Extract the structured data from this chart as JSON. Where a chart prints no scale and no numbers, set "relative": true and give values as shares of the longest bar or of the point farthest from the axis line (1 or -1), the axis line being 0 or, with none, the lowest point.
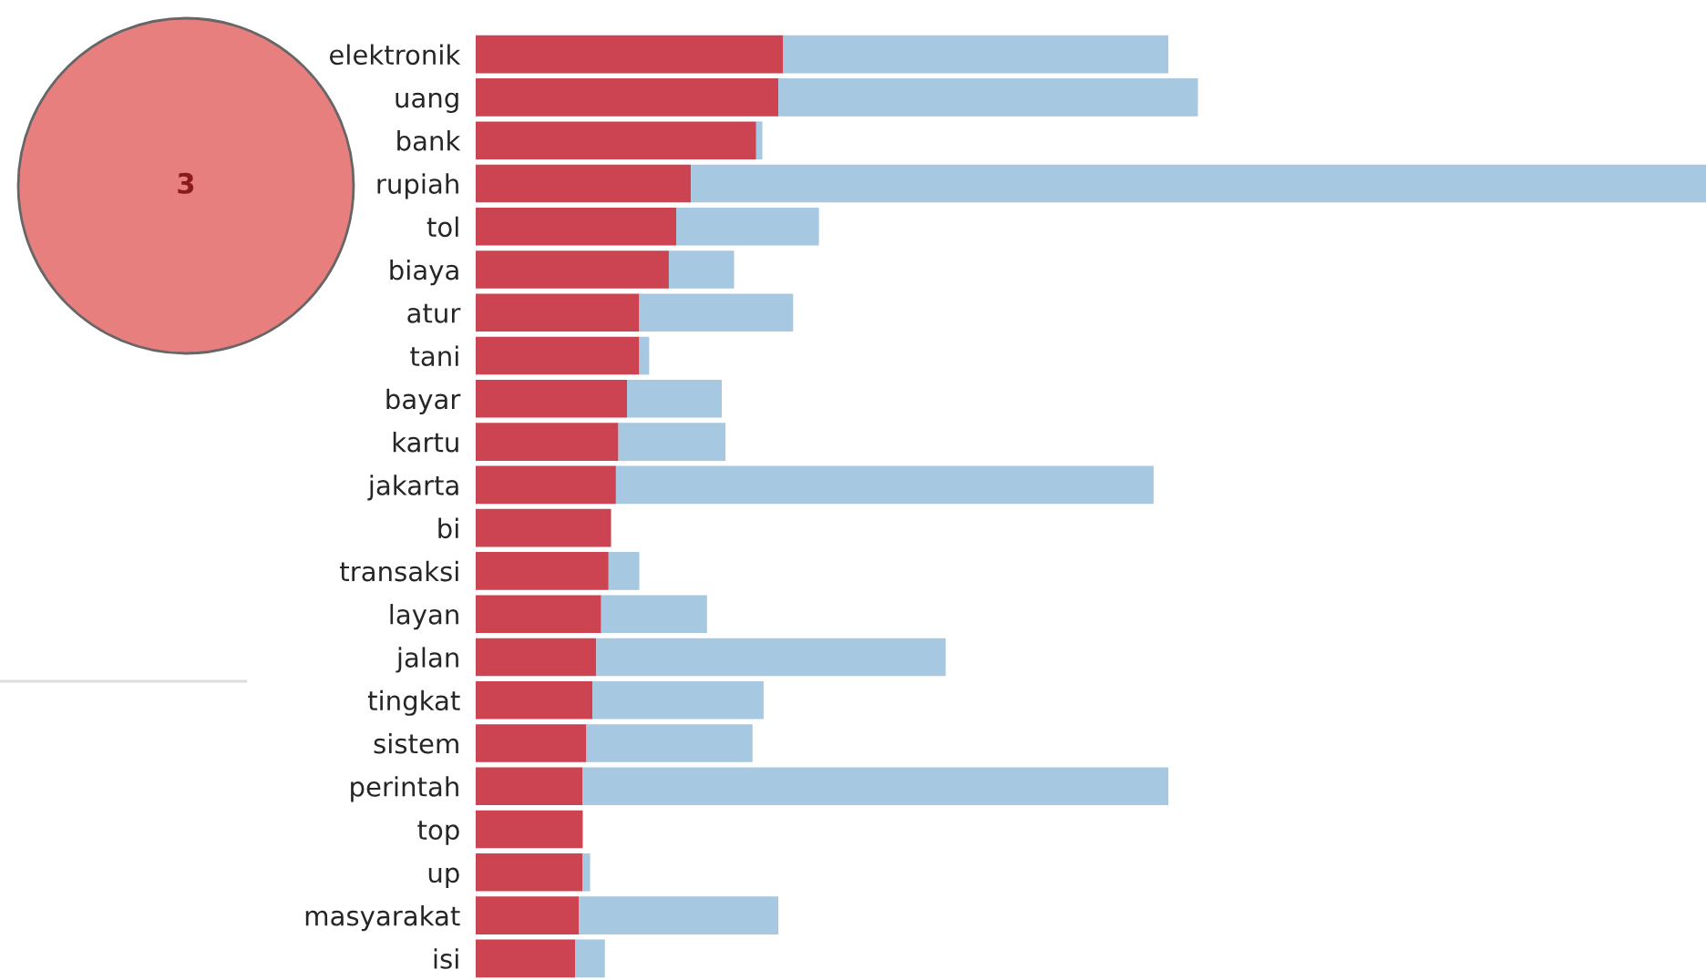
{
  "chart_data": {
    "type": "bar",
    "orientation": "horizontal",
    "relative": true,
    "stacked": true,
    "categories": [
      "elektronik",
      "uang",
      "bank",
      "rupiah",
      "tol",
      "biaya",
      "atur",
      "tani",
      "bayar",
      "kartu",
      "jakarta",
      "bi",
      "transaksi",
      "layan",
      "jalan",
      "tingkat",
      "sistem",
      "perintah",
      "top",
      "up",
      "masyarakat",
      "isi"
    ],
    "series": [
      {
        "color": "#cc4451",
        "values": [
          0.25,
          0.246,
          0.228,
          0.175,
          0.163,
          0.157,
          0.133,
          0.133,
          0.123,
          0.116,
          0.114,
          0.11,
          0.108,
          0.102,
          0.098,
          0.095,
          0.09,
          0.087,
          0.087,
          0.087,
          0.084,
          0.081
        ]
      },
      {
        "color": "#a6c8e0",
        "values": [
          0.313,
          0.341,
          0.005,
          0.825,
          0.116,
          0.053,
          0.125,
          0.008,
          0.077,
          0.087,
          0.437,
          null,
          0.025,
          0.086,
          0.284,
          0.139,
          0.135,
          0.476,
          null,
          0.006,
          0.162,
          0.024
        ]
      }
    ],
    "annotations": [
      "3"
    ]
  }
}
